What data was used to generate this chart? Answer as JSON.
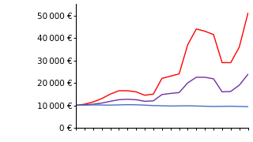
{
  "years": [
    0,
    1,
    2,
    3,
    4,
    5,
    6,
    7,
    8,
    9,
    10,
    11,
    12,
    13,
    14,
    15,
    16,
    17,
    18,
    19,
    20
  ],
  "bonds": [
    10000,
    10100,
    10200,
    10150,
    10100,
    10200,
    10300,
    10250,
    10100,
    9900,
    9800,
    9700,
    9750,
    9800,
    9700,
    9600,
    9500,
    9550,
    9600,
    9500,
    9400
  ],
  "shares": [
    10000,
    10500,
    11500,
    13000,
    15000,
    16500,
    16500,
    16000,
    14500,
    15000,
    22000,
    23000,
    24000,
    37000,
    44000,
    43000,
    41500,
    29000,
    29000,
    36000,
    51000
  ],
  "shares20": [
    10000,
    10200,
    10500,
    11000,
    11800,
    12500,
    12700,
    12500,
    11800,
    12000,
    14800,
    15300,
    15700,
    20000,
    22500,
    22500,
    21800,
    16000,
    16200,
    19000,
    23800
  ],
  "bonds_color": "#4472C4",
  "shares_color": "#FF0000",
  "shares20_color": "#7030A0",
  "background_color": "#FFFFFF",
  "ylim": [
    0,
    55000
  ],
  "yticks": [
    0,
    10000,
    20000,
    30000,
    40000,
    50000
  ],
  "num_xticks": 21,
  "linewidth": 1.0,
  "tick_fontsize": 7.5,
  "fig_width": 3.2,
  "fig_height": 1.8,
  "fig_dpi": 100
}
